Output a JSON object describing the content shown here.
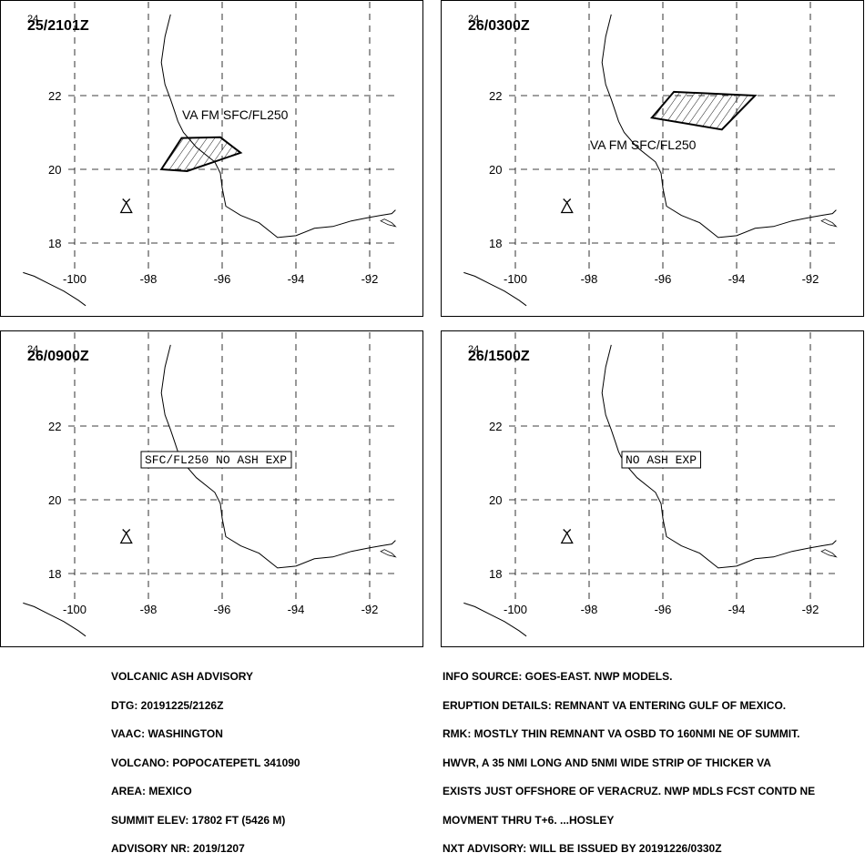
{
  "panels": [
    {
      "time": "25/2101Z",
      "label": "VA FM SFC/FL250",
      "label_boxed": false,
      "ash_polygon": [
        [
          -97.65,
          20.0
        ],
        [
          -97.1,
          20.85
        ],
        [
          -96.05,
          20.87
        ],
        [
          -95.5,
          20.45
        ],
        [
          -96.95,
          19.95
        ]
      ]
    },
    {
      "time": "26/0300Z",
      "label": "VA FM SFC/FL250",
      "label_boxed": false,
      "ash_polygon": [
        [
          -96.3,
          21.4
        ],
        [
          -95.7,
          22.1
        ],
        [
          -93.5,
          22.0
        ],
        [
          -94.4,
          21.08
        ]
      ]
    },
    {
      "time": "26/0900Z",
      "label": "SFC/FL250 NO ASH EXP",
      "label_boxed": true,
      "ash_polygon": []
    },
    {
      "time": "26/1500Z",
      "label": "NO ASH EXP",
      "label_boxed": true,
      "ash_polygon": []
    }
  ],
  "map": {
    "lon_range": [
      -101.4,
      -91.2
    ],
    "lat_range": [
      16.2,
      24.2
    ],
    "lon_ticks": [
      -100,
      -98,
      -96,
      -94,
      -92
    ],
    "lat_ticks": [
      24,
      22,
      20,
      18
    ],
    "lon_labels": [
      "-100",
      "-98",
      "-96",
      "-94",
      "-92"
    ],
    "lat_labels": [
      "24",
      "22",
      "20",
      "18"
    ],
    "volcano": {
      "lon": -98.6,
      "lat": 19.0
    },
    "coastline_east": [
      [
        -97.4,
        24.2
      ],
      [
        -97.55,
        23.6
      ],
      [
        -97.65,
        22.9
      ],
      [
        -97.55,
        22.3
      ],
      [
        -97.4,
        21.9
      ],
      [
        -97.3,
        21.6
      ],
      [
        -97.2,
        21.3
      ],
      [
        -97.05,
        21.0
      ],
      [
        -96.7,
        20.6
      ],
      [
        -96.2,
        20.2
      ],
      [
        -96.05,
        19.9
      ],
      [
        -96.0,
        19.5
      ],
      [
        -95.9,
        19.0
      ],
      [
        -95.5,
        18.75
      ],
      [
        -95.0,
        18.55
      ],
      [
        -94.5,
        18.15
      ],
      [
        -94.0,
        18.2
      ],
      [
        -93.5,
        18.4
      ],
      [
        -93.0,
        18.45
      ],
      [
        -92.5,
        18.6
      ],
      [
        -92.0,
        18.7
      ],
      [
        -91.7,
        18.75
      ],
      [
        -91.4,
        18.8
      ],
      [
        -91.3,
        18.9
      ]
    ],
    "coastline_west": [
      [
        -101.4,
        17.2
      ],
      [
        -101.1,
        17.1
      ],
      [
        -100.7,
        16.9
      ],
      [
        -100.3,
        16.7
      ],
      [
        -99.9,
        16.45
      ],
      [
        -99.7,
        16.3
      ]
    ],
    "lagoon_east": [
      [
        -91.7,
        18.6
      ],
      [
        -91.5,
        18.5
      ],
      [
        -91.3,
        18.45
      ],
      [
        -91.4,
        18.55
      ],
      [
        -91.6,
        18.65
      ]
    ]
  },
  "advisory_left": [
    "VOLCANIC ASH ADVISORY",
    "DTG: 20191225/2126Z",
    "VAAC: WASHINGTON",
    "VOLCANO: POPOCATEPETL 341090",
    "AREA: MEXICO",
    "SUMMIT ELEV: 17802 FT (5426 M)",
    "ADVISORY NR: 2019/1207"
  ],
  "advisory_right": [
    "INFO SOURCE: GOES-EAST. NWP MODELS.",
    "ERUPTION DETAILS: REMNANT VA ENTERING GULF OF MEXICO.",
    "RMK: MOSTLY THIN REMNANT VA OSBD TO 160NMI NE OF SUMMIT.",
    "HWVR, A 35 NMI LONG AND 5NMI WIDE STRIP OF THICKER VA",
    "EXISTS JUST OFFSHORE OF VERACRUZ. NWP MDLS FCST CONTD NE",
    "MOVMENT THRU T+6. ...HOSLEY",
    "NXT ADVISORY: WILL BE ISSUED BY 20191226/0330Z"
  ]
}
